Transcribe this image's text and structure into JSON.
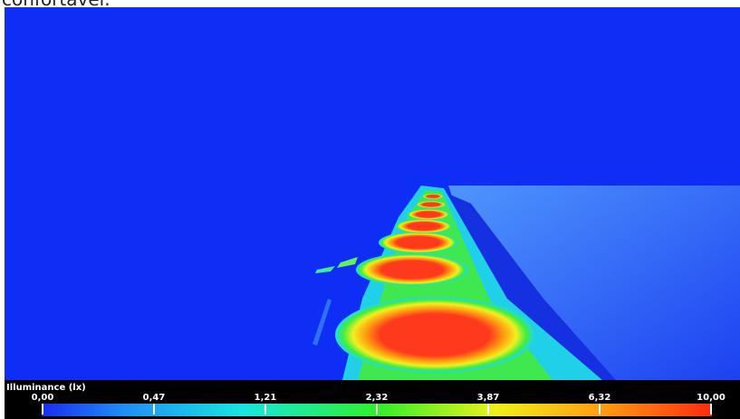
{
  "caption": "confortável.",
  "legend": {
    "title": "Illuminance (lx)",
    "ticks": [
      {
        "value": 0,
        "label": "0,00"
      },
      {
        "value": 0.47,
        "label": "0,47"
      },
      {
        "value": 1.21,
        "label": "1,21"
      },
      {
        "value": 2.32,
        "label": "2,32"
      },
      {
        "value": 3.87,
        "label": "3,87"
      },
      {
        "value": 6.32,
        "label": "6,32"
      },
      {
        "value": 10,
        "label": "10,00"
      }
    ]
  }
}
